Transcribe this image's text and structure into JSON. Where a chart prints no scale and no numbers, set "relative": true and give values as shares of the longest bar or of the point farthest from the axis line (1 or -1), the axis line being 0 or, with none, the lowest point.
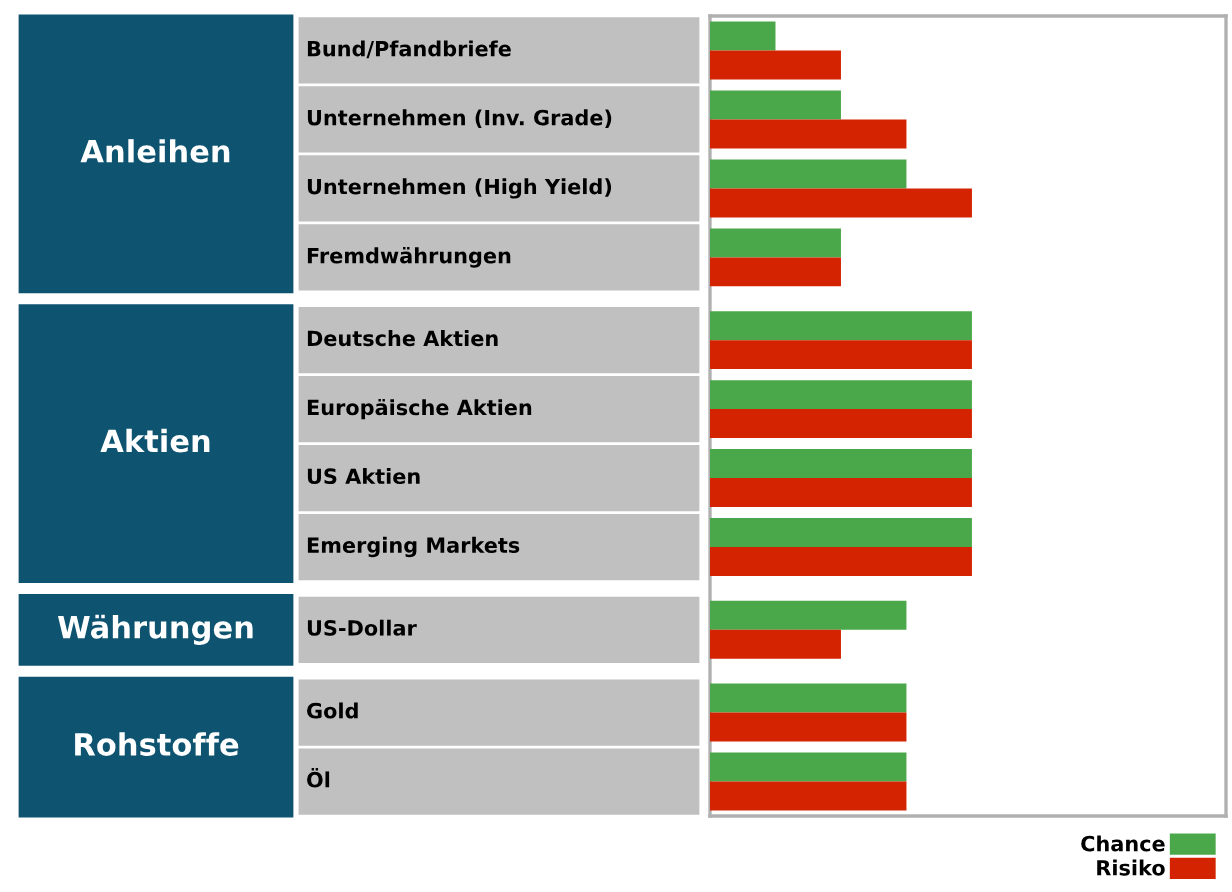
{
  "chart_data": {
    "type": "bar",
    "orientation": "horizontal",
    "relative": true,
    "legend": "bottom right",
    "categories": [
      "Bund/Pfandbriefe",
      "Unternehmen (Inv. Grade)",
      "Unternehmen (High Yield)",
      "Fremdwährungen",
      null,
      "Deutsche Aktien",
      "Europäische Aktien",
      "US Aktien",
      "Emerging Markets",
      null,
      "US-Dollar",
      null,
      "Gold",
      "Öl"
    ],
    "annotations": [
      "Anleihen",
      "Aktien",
      "Währungen",
      "Rohstoffe"
    ],
    "series": [
      {
        "name": "Chance",
        "color": "#4aa84a",
        "values": [
          0.25,
          0.5,
          0.75,
          0.5,
          null,
          1,
          1,
          1,
          1,
          null,
          0.75,
          null,
          0.75,
          0.75
        ]
      },
      {
        "name": "Risiko",
        "color": "#d42300",
        "values": [
          0.5,
          0.75,
          1,
          0.5,
          null,
          1,
          1,
          1,
          1,
          null,
          0.5,
          null,
          0.75,
          0.75
        ]
      }
    ]
  }
}
